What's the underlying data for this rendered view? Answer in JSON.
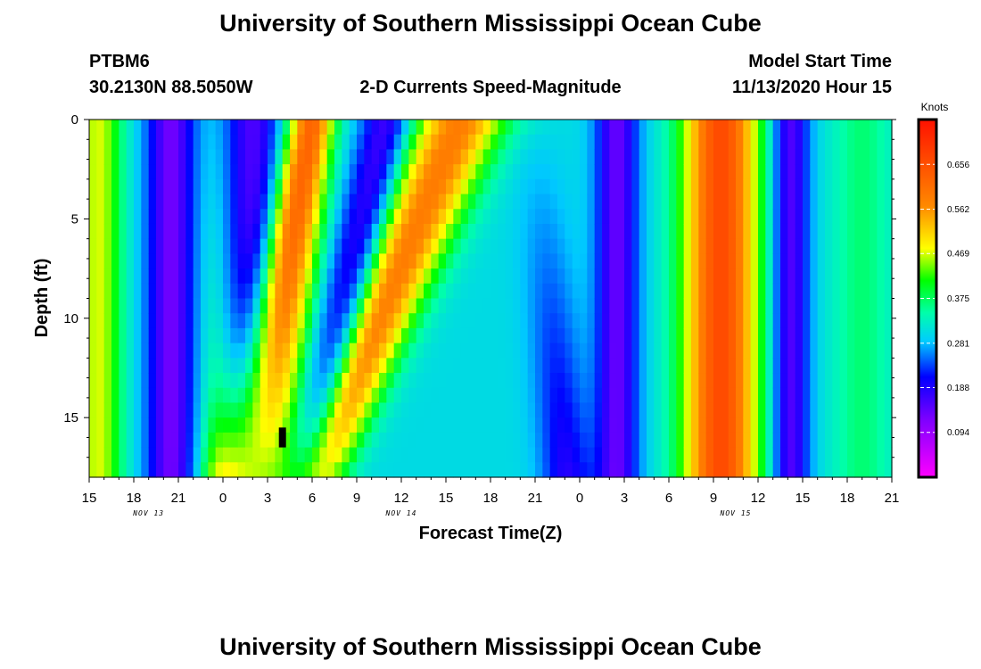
{
  "header": {
    "title": "University of Southern Mississippi Ocean Cube",
    "footer_title": "University of Southern Mississippi Ocean Cube",
    "station": "PTBM6",
    "coords": "30.2130N 88.5050W",
    "subtitle": "2-D Currents Speed-Magnitude",
    "model_label": "Model Start Time",
    "model_time": "11/13/2020 Hour 15"
  },
  "chart_data": {
    "type": "heatmap",
    "title": "2-D Currents Speed-Magnitude",
    "xlabel": "Forecast Time(Z)",
    "ylabel": "Depth (ft)",
    "x_ticks": [
      "15",
      "18",
      "21",
      "0",
      "3",
      "6",
      "9",
      "12",
      "15",
      "18",
      "21",
      "0",
      "3",
      "6",
      "9",
      "12",
      "15",
      "18",
      "21"
    ],
    "x_hours": [
      0,
      3,
      6,
      9,
      12,
      15,
      18,
      21,
      24,
      27,
      30,
      33,
      36,
      39,
      42,
      45,
      48,
      51,
      54
    ],
    "x_range_hours": [
      0,
      54
    ],
    "date_labels": [
      {
        "label": "NOV 13",
        "hour": 4
      },
      {
        "label": "NOV 14",
        "hour": 21
      },
      {
        "label": "NOV 15",
        "hour": 43.5
      }
    ],
    "y_ticks": [
      "0",
      "5",
      "10",
      "15"
    ],
    "y_values": [
      0,
      5,
      10,
      15
    ],
    "y_range": [
      0,
      18
    ],
    "colorbar": {
      "label": "Knots",
      "ticks": [
        "0.656",
        "0.562",
        "0.469",
        "0.375",
        "0.281",
        "0.188",
        "0.094"
      ],
      "tick_values": [
        0.656,
        0.562,
        0.469,
        0.375,
        0.281,
        0.188,
        0.094
      ],
      "range": [
        0,
        0.75
      ]
    },
    "marker": {
      "hour": 13,
      "depth_from": 15.5,
      "depth_to": 16.5
    }
  }
}
